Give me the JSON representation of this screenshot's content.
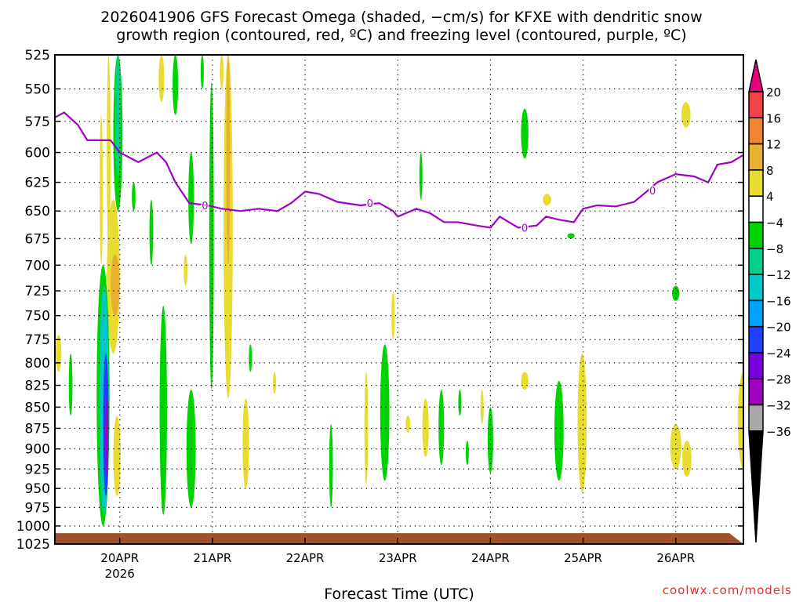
{
  "title_line1": "2026041906 GFS Forecast Omega (shaded, −cm/s) for KFXE with dendritic snow",
  "title_line2": "growth region (contoured, red, ºC) and freezing level (contoured, purple, ºC)",
  "credit": "coolwx.com/models",
  "chart_data": {
    "type": "heatmap",
    "title": "2026041906 GFS Forecast Omega (shaded, −cm/s) for KFXE with dendritic snow growth region (contoured, red, ºC) and freezing level (contoured, purple, ºC)",
    "xlabel": "Forecast Time (UTC)",
    "ylabel": "",
    "x_units": "days from 20APR 00Z",
    "xlim": [
      -0.7,
      6.73
    ],
    "ylim_hPa": [
      525,
      1025
    ],
    "y_scale": "log-pressure, inverted",
    "grid": true,
    "x_ticks": [
      {
        "value": 0,
        "label": "20APR",
        "sublabel": "2026"
      },
      {
        "value": 1,
        "label": "21APR"
      },
      {
        "value": 2,
        "label": "22APR"
      },
      {
        "value": 3,
        "label": "23APR"
      },
      {
        "value": 4,
        "label": "24APR"
      },
      {
        "value": 5,
        "label": "25APR"
      },
      {
        "value": 6,
        "label": "26APR"
      }
    ],
    "y_ticks": [
      525,
      550,
      575,
      600,
      625,
      650,
      675,
      700,
      725,
      750,
      775,
      800,
      825,
      850,
      875,
      900,
      925,
      950,
      975,
      1000,
      1025
    ],
    "colorbar": {
      "labels": [
        "20",
        "16",
        "12",
        "8",
        "4",
        "−4",
        "−8",
        "−12",
        "−16",
        "−20",
        "−24",
        "−28",
        "−32",
        "−36"
      ],
      "levels": [
        20,
        16,
        12,
        8,
        4,
        -4,
        -8,
        -12,
        -16,
        -20,
        -24,
        -28,
        -32,
        -36
      ],
      "colors": [
        "#e8007f",
        "#f04444",
        "#f08430",
        "#e8b030",
        "#e8dc30",
        "#ffffff",
        "#00d400",
        "#00d08c",
        "#00c8c8",
        "#00a0ff",
        "#2040ff",
        "#7800dc",
        "#a000c0",
        "#a8a8a8",
        "#000000"
      ]
    },
    "freezing_level": {
      "label": "0",
      "color": "#a000c8",
      "points": [
        [
          -0.7,
          572
        ],
        [
          -0.6,
          568
        ],
        [
          -0.45,
          578
        ],
        [
          -0.35,
          590
        ],
        [
          -0.1,
          590
        ],
        [
          0,
          600
        ],
        [
          0.2,
          608
        ],
        [
          0.4,
          600
        ],
        [
          0.5,
          608
        ],
        [
          0.6,
          625
        ],
        [
          0.75,
          643
        ],
        [
          0.95,
          645
        ],
        [
          1.1,
          648
        ],
        [
          1.3,
          650
        ],
        [
          1.5,
          648
        ],
        [
          1.7,
          650
        ],
        [
          1.85,
          643
        ],
        [
          2.0,
          633
        ],
        [
          2.15,
          635
        ],
        [
          2.35,
          642
        ],
        [
          2.6,
          645
        ],
        [
          2.8,
          643
        ],
        [
          2.95,
          650
        ],
        [
          3.0,
          655
        ],
        [
          3.2,
          648
        ],
        [
          3.35,
          652
        ],
        [
          3.5,
          660
        ],
        [
          3.65,
          660
        ],
        [
          3.85,
          663
        ],
        [
          4.0,
          665
        ],
        [
          4.1,
          655
        ],
        [
          4.3,
          665
        ],
        [
          4.5,
          663
        ],
        [
          4.6,
          655
        ],
        [
          4.75,
          658
        ],
        [
          4.9,
          660
        ],
        [
          5.0,
          648
        ],
        [
          5.15,
          645
        ],
        [
          5.35,
          646
        ],
        [
          5.55,
          642
        ],
        [
          5.7,
          632
        ],
        [
          5.8,
          625
        ],
        [
          6.0,
          618
        ],
        [
          6.2,
          620
        ],
        [
          6.35,
          625
        ],
        [
          6.45,
          610
        ],
        [
          6.6,
          608
        ],
        [
          6.73,
          602
        ]
      ],
      "label_positions": [
        0.92,
        2.7,
        4.37,
        5.75
      ]
    },
    "surface_top_hPa": 1012,
    "surface_color": "#a0522d",
    "omega_regions": [
      {
        "day": -0.66,
        "p": [
          770,
          810
        ],
        "w": 0.03,
        "v": 6
      },
      {
        "day": -0.53,
        "p": [
          790,
          860
        ],
        "w": 0.02,
        "v": -6
      },
      {
        "day": -0.2,
        "p": [
          570,
          700
        ],
        "w": 0.015,
        "v": 5
      },
      {
        "day": -0.12,
        "p": [
          525,
          690
        ],
        "w": 0.02,
        "v": 5
      },
      {
        "day": -0.07,
        "p": [
          640,
          790
        ],
        "w": 0.07,
        "v": 6
      },
      {
        "day": -0.05,
        "p": [
          690,
          750
        ],
        "w": 0.05,
        "v": 10
      },
      {
        "day": -0.03,
        "p": [
          860,
          960
        ],
        "w": 0.04,
        "v": 6
      },
      {
        "day": -0.18,
        "p": [
          700,
          1000
        ],
        "w": 0.07,
        "v": -6
      },
      {
        "day": -0.17,
        "p": [
          720,
          985
        ],
        "w": 0.05,
        "v": -14
      },
      {
        "day": -0.15,
        "p": [
          790,
          960
        ],
        "w": 0.03,
        "v": -22
      },
      {
        "day": -0.14,
        "p": [
          840,
          930
        ],
        "w": 0.015,
        "v": -30
      },
      {
        "day": -0.02,
        "p": [
          525,
          650
        ],
        "w": 0.05,
        "v": -6
      },
      {
        "day": -0.02,
        "p": [
          525,
          620
        ],
        "w": 0.03,
        "v": -10
      },
      {
        "day": 0.15,
        "p": [
          625,
          650
        ],
        "w": 0.02,
        "v": -6
      },
      {
        "day": 0.34,
        "p": [
          640,
          700
        ],
        "w": 0.02,
        "v": -6
      },
      {
        "day": 0.45,
        "p": [
          525,
          560
        ],
        "w": 0.03,
        "v": 5
      },
      {
        "day": 0.47,
        "p": [
          740,
          985
        ],
        "w": 0.04,
        "v": -6
      },
      {
        "day": 0.6,
        "p": [
          525,
          570
        ],
        "w": 0.03,
        "v": -6
      },
      {
        "day": 0.71,
        "p": [
          690,
          720
        ],
        "w": 0.02,
        "v": 5
      },
      {
        "day": 0.77,
        "p": [
          600,
          680
        ],
        "w": 0.03,
        "v": -6
      },
      {
        "day": 0.77,
        "p": [
          830,
          975
        ],
        "w": 0.05,
        "v": -6
      },
      {
        "day": 0.89,
        "p": [
          525,
          550
        ],
        "w": 0.015,
        "v": -6
      },
      {
        "day": 0.99,
        "p": [
          545,
          830
        ],
        "w": 0.025,
        "v": -6
      },
      {
        "day": 1.1,
        "p": [
          525,
          550
        ],
        "w": 0.02,
        "v": 5
      },
      {
        "day": 1.17,
        "p": [
          525,
          840
        ],
        "w": 0.05,
        "v": 6
      },
      {
        "day": 1.17,
        "p": [
          525,
          700
        ],
        "w": 0.02,
        "v": 10
      },
      {
        "day": 1.36,
        "p": [
          840,
          950
        ],
        "w": 0.035,
        "v": 5
      },
      {
        "day": 1.41,
        "p": [
          780,
          810
        ],
        "w": 0.01,
        "v": -5
      },
      {
        "day": 1.67,
        "p": [
          810,
          835
        ],
        "w": 0.01,
        "v": 5
      },
      {
        "day": 2.28,
        "p": [
          870,
          975
        ],
        "w": 0.02,
        "v": -6
      },
      {
        "day": 2.66,
        "p": [
          810,
          945
        ],
        "w": 0.02,
        "v": 5
      },
      {
        "day": 2.86,
        "p": [
          780,
          940
        ],
        "w": 0.05,
        "v": -6
      },
      {
        "day": 2.95,
        "p": [
          725,
          775
        ],
        "w": 0.015,
        "v": 5
      },
      {
        "day": 3.11,
        "p": [
          860,
          880
        ],
        "w": 0.025,
        "v": 5
      },
      {
        "day": 3.25,
        "p": [
          600,
          640
        ],
        "w": 0.008,
        "v": -5
      },
      {
        "day": 3.3,
        "p": [
          840,
          910
        ],
        "w": 0.035,
        "v": 5
      },
      {
        "day": 3.47,
        "p": [
          830,
          920
        ],
        "w": 0.03,
        "v": -6
      },
      {
        "day": 3.67,
        "p": [
          830,
          860
        ],
        "w": 0.015,
        "v": -5
      },
      {
        "day": 3.75,
        "p": [
          890,
          920
        ],
        "w": 0.01,
        "v": -5
      },
      {
        "day": 3.91,
        "p": [
          830,
          870
        ],
        "w": 0.015,
        "v": 5
      },
      {
        "day": 4.0,
        "p": [
          850,
          930
        ],
        "w": 0.03,
        "v": -6
      },
      {
        "day": 4.37,
        "p": [
          565,
          605
        ],
        "w": 0.04,
        "v": -6
      },
      {
        "day": 4.37,
        "p": [
          810,
          830
        ],
        "w": 0.04,
        "v": 5
      },
      {
        "day": 4.61,
        "p": [
          635,
          645
        ],
        "w": 0.045,
        "v": 5
      },
      {
        "day": 4.87,
        "p": [
          670,
          675
        ],
        "w": 0.04,
        "v": -6
      },
      {
        "day": 4.74,
        "p": [
          820,
          940
        ],
        "w": 0.05,
        "v": -6
      },
      {
        "day": 4.99,
        "p": [
          790,
          955
        ],
        "w": 0.05,
        "v": 6
      },
      {
        "day": 6.0,
        "p": [
          720,
          735
        ],
        "w": 0.04,
        "v": -6
      },
      {
        "day": 6.11,
        "p": [
          560,
          580
        ],
        "w": 0.05,
        "v": 5
      },
      {
        "day": 6.0,
        "p": [
          870,
          925
        ],
        "w": 0.06,
        "v": 5
      },
      {
        "day": 6.12,
        "p": [
          890,
          935
        ],
        "w": 0.05,
        "v": 5
      },
      {
        "day": 6.73,
        "p": [
          810,
          925
        ],
        "w": 0.06,
        "v": 6
      }
    ]
  }
}
